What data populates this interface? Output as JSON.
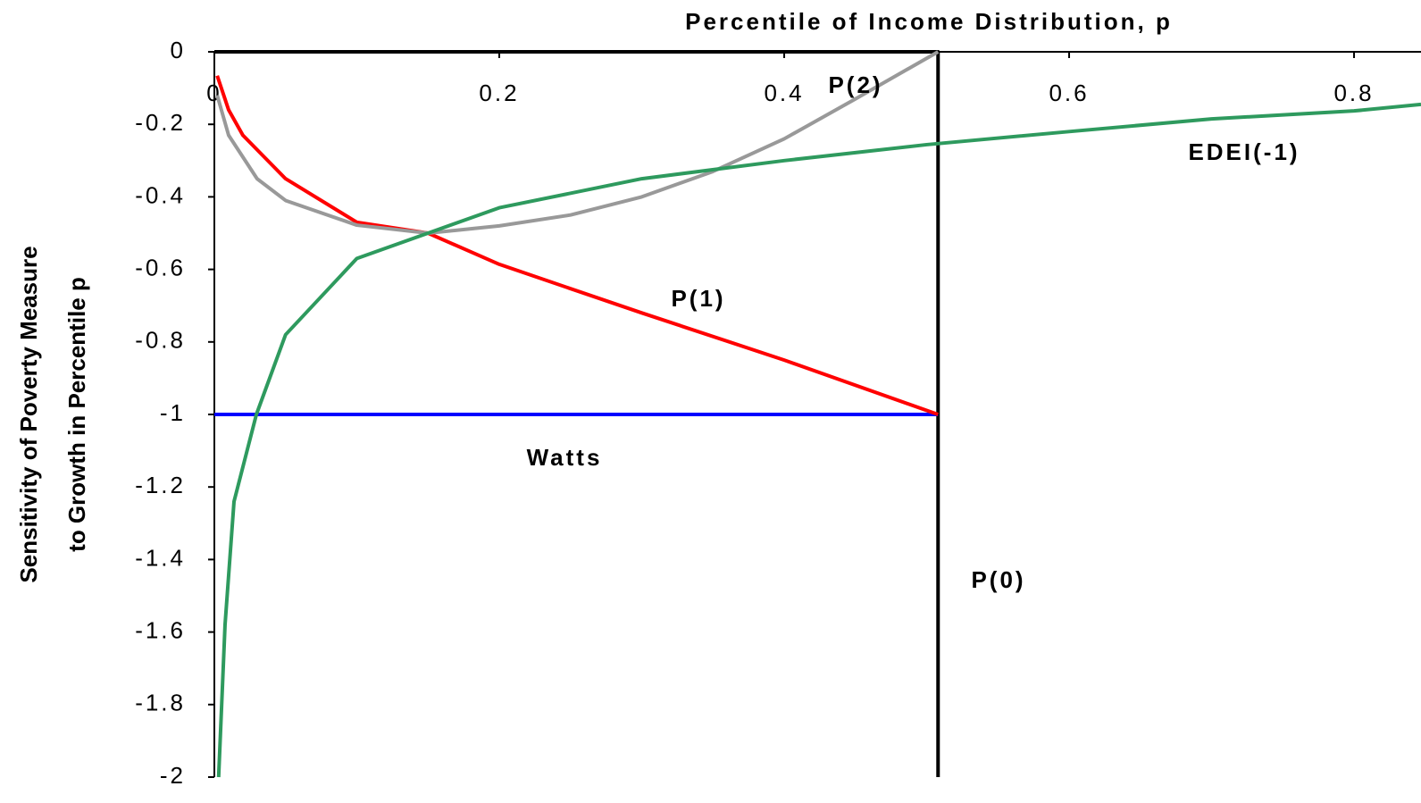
{
  "chart_data": {
    "type": "line",
    "title": "Percentile of Income Distribution, p",
    "y_label": [
      "Sensitivity of Poverty Measure",
      "to Growth in Percentile p"
    ],
    "xlim": [
      0,
      0.847
    ],
    "xticks": [
      0,
      0.2,
      0.4,
      0.6,
      0.8
    ],
    "ylim": [
      -2,
      0
    ],
    "yticks": [
      0,
      -0.2,
      -0.4,
      -0.6,
      -0.8,
      -1,
      -1.2,
      -1.4,
      -1.6,
      -1.8,
      -2
    ],
    "x_axis_position": "top",
    "series": [
      {
        "name": "P(0)",
        "color": "#000000",
        "x": [
          0,
          0.508,
          0.508
        ],
        "values": [
          0,
          0,
          -2
        ]
      },
      {
        "name": "Watts",
        "color": "#0000ff",
        "x": [
          0,
          0.508
        ],
        "values": [
          -1,
          -1
        ]
      },
      {
        "name": "P(1)",
        "color": "#ff0000",
        "x": [
          0.002,
          0.01,
          0.02,
          0.05,
          0.1,
          0.15,
          0.2,
          0.3,
          0.4,
          0.508
        ],
        "values": [
          -0.066,
          -0.16,
          -0.23,
          -0.35,
          -0.47,
          -0.5,
          -0.586,
          -0.72,
          -0.85,
          -1
        ]
      },
      {
        "name": "P(2)",
        "color": "#999999",
        "x": [
          0.002,
          0.01,
          0.03,
          0.05,
          0.1,
          0.15,
          0.2,
          0.25,
          0.3,
          0.35,
          0.4,
          0.45,
          0.508
        ],
        "values": [
          -0.12,
          -0.23,
          -0.35,
          -0.41,
          -0.478,
          -0.5,
          -0.48,
          -0.45,
          -0.4,
          -0.33,
          -0.24,
          -0.13,
          0
        ]
      },
      {
        "name": "EDEI(-1)",
        "color": "#2e9a5e",
        "x": [
          0.003,
          0.0075,
          0.0138,
          0.0295,
          0.05,
          0.1,
          0.15,
          0.2,
          0.3,
          0.4,
          0.5,
          0.6,
          0.7,
          0.8,
          0.847
        ],
        "values": [
          -2,
          -1.58,
          -1.24,
          -1,
          -0.78,
          -0.57,
          -0.5,
          -0.43,
          -0.35,
          -0.3,
          -0.256,
          -0.22,
          -0.185,
          -0.163,
          -0.145
        ]
      }
    ]
  }
}
